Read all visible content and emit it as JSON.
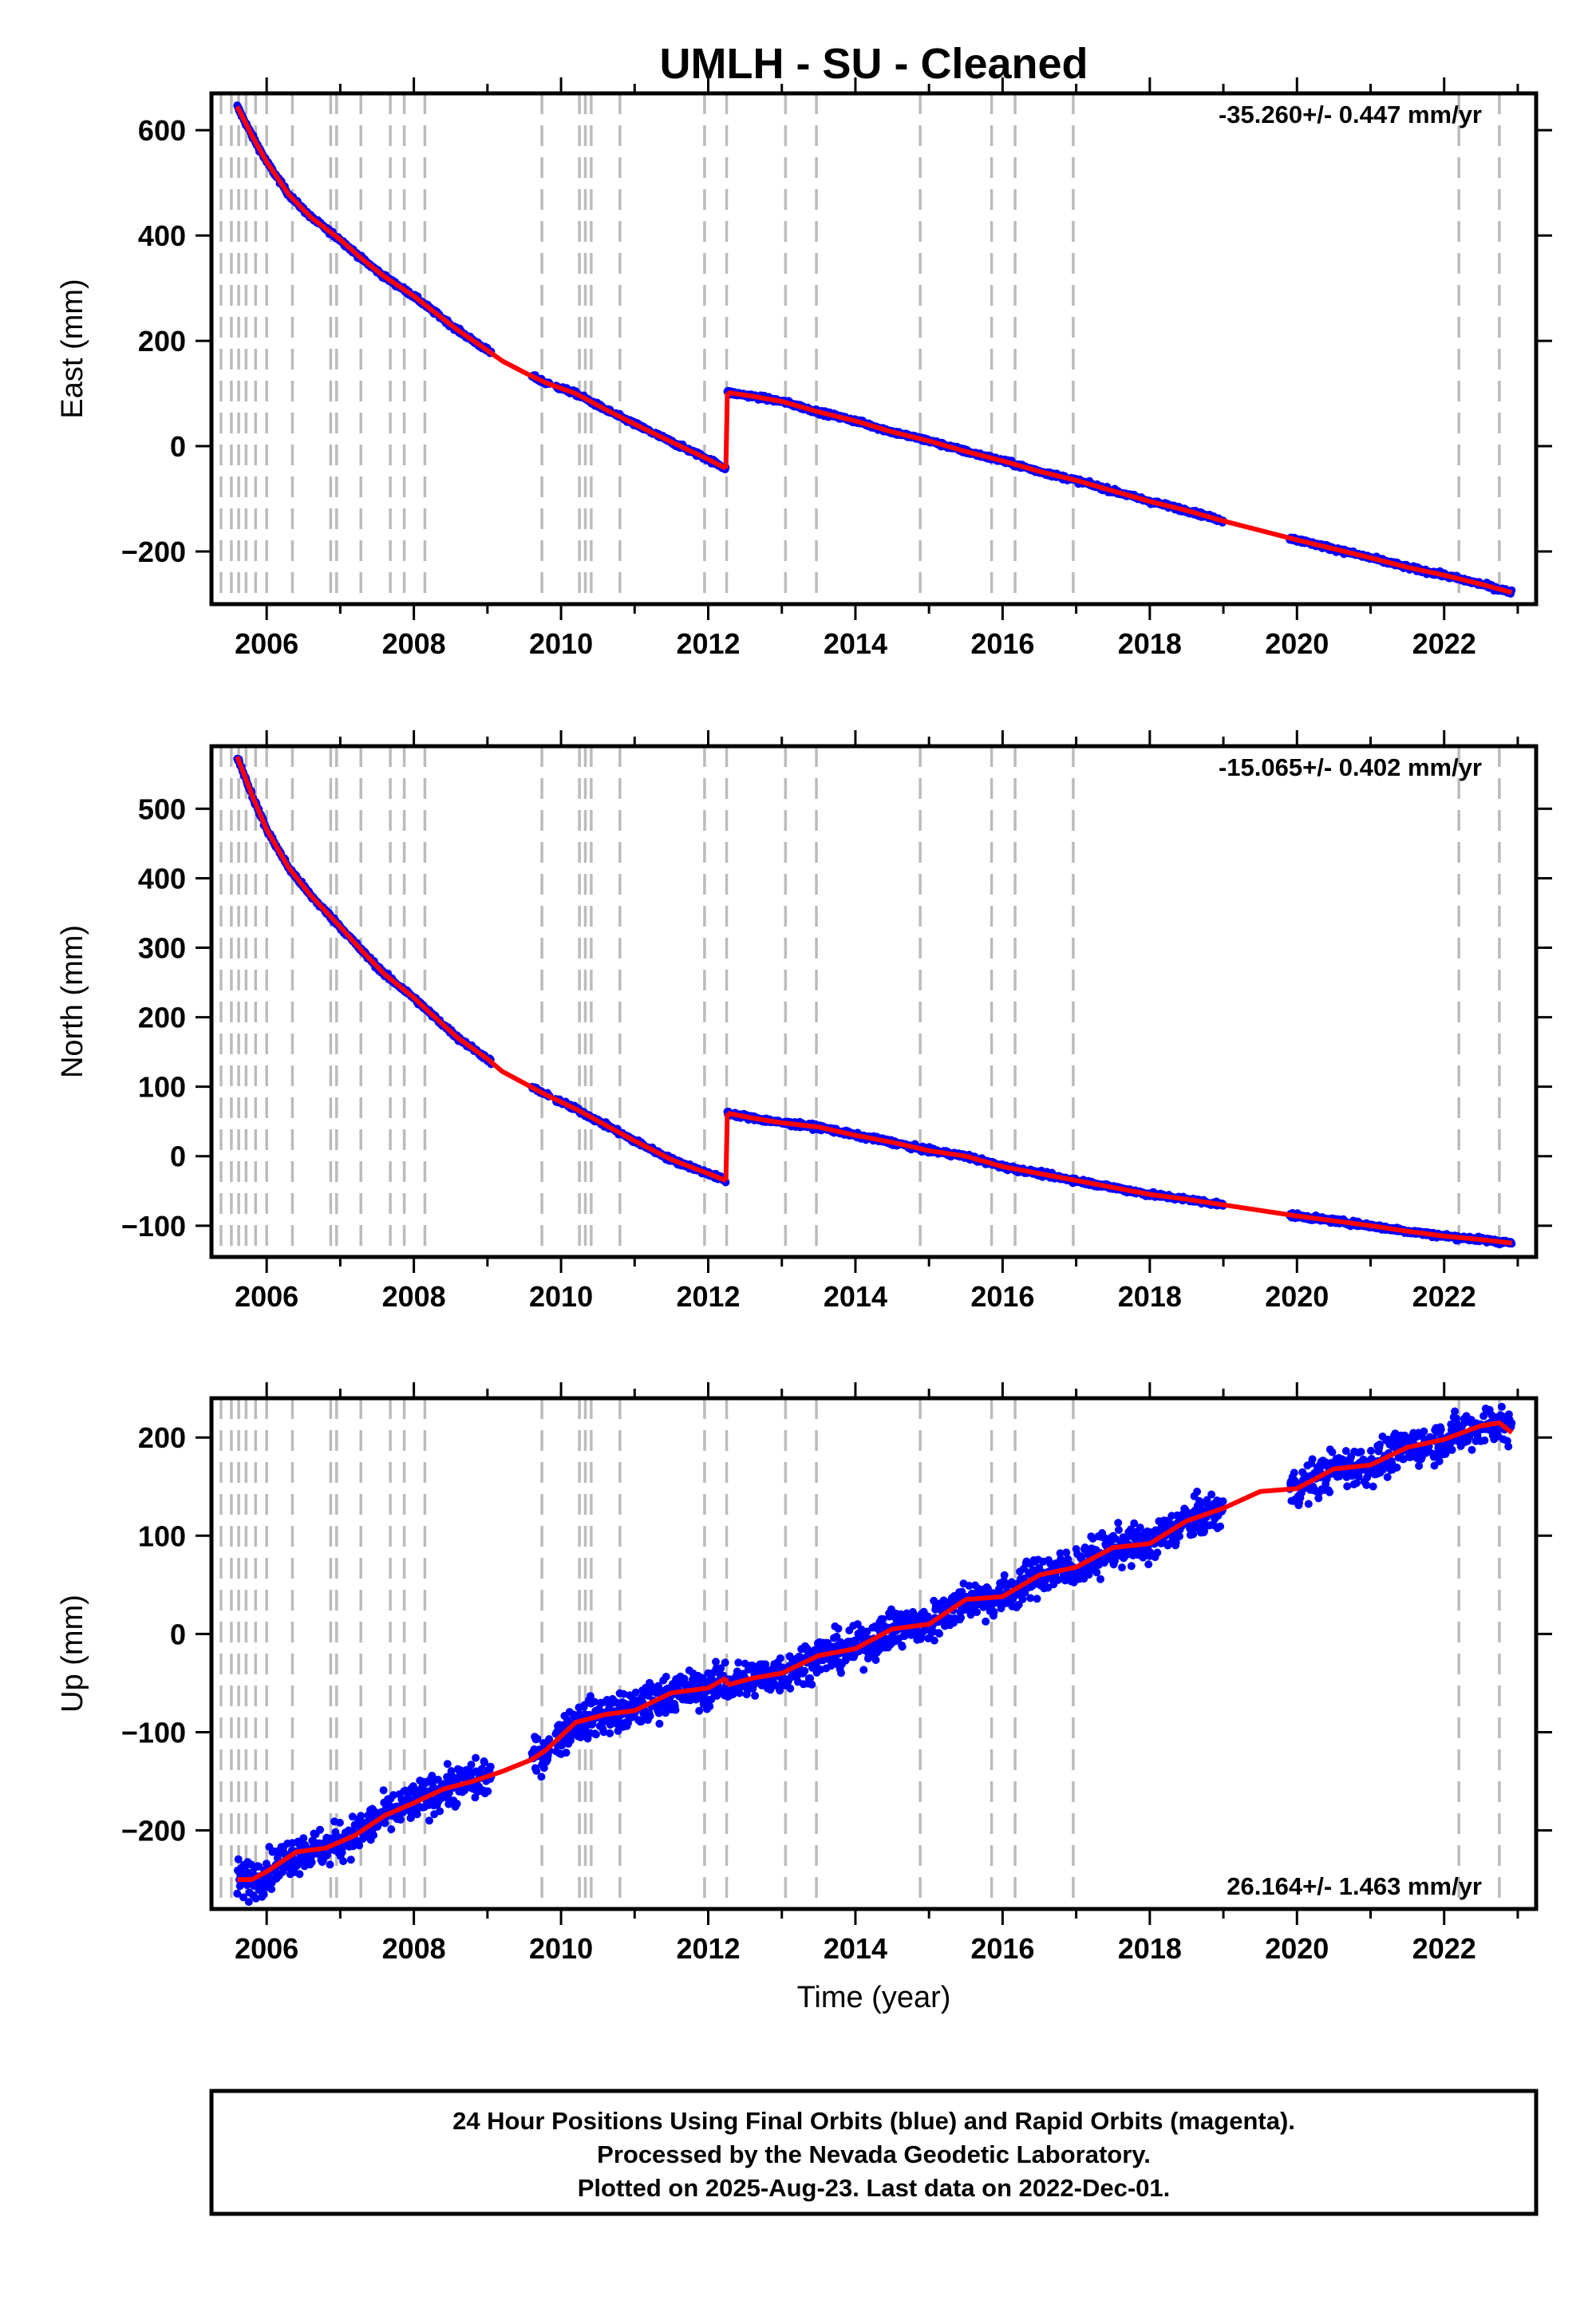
{
  "title": "UMLH  - SU - Cleaned",
  "xlabel": "Time (year)",
  "footer": [
    "24 Hour Positions Using Final Orbits (blue) and Rapid Orbits (magenta).",
    "Processed by the Nevada Geodetic Laboratory.",
    "Plotted on 2025-Aug-23. Last data on 2022-Dec-01."
  ],
  "colors": {
    "data": "#0000ff",
    "model": "#ff0000",
    "events": "#bbbbbb"
  },
  "event_lines": [
    2005.38,
    2005.52,
    2005.62,
    2005.72,
    2005.85,
    2006.0,
    2006.35,
    2006.87,
    2006.95,
    2007.28,
    2007.68,
    2007.87,
    2008.15,
    2009.74,
    2010.25,
    2010.33,
    2010.41,
    2010.8,
    2011.95,
    2012.25,
    2013.05,
    2013.47,
    2014.88,
    2015.85,
    2016.17,
    2016.96,
    2022.2,
    2022.75
  ],
  "chart_data": [
    {
      "type": "scatter",
      "ylabel": "East (mm)",
      "rate": "-35.260+/- 0.447 mm/yr",
      "xlim": [
        2005.25,
        2023.25
      ],
      "ylim": [
        -300,
        670
      ],
      "xticks": [
        2006,
        2008,
        2010,
        2012,
        2014,
        2016,
        2018,
        2020,
        2022
      ],
      "yticks": [
        -200,
        0,
        200,
        400,
        600
      ],
      "noise": 3,
      "series": [
        {
          "x": [
            2005.6,
            2005.8,
            2006.0,
            2006.3,
            2006.6,
            2007.0,
            2007.3,
            2007.6,
            2008.0,
            2008.2,
            2008.6,
            2009.0,
            2009.2,
            2009.5,
            2009.8,
            2010.2,
            2010.6,
            2011.0,
            2011.5,
            2012.0,
            2012.24
          ],
          "y": [
            645,
            590,
            540,
            478,
            435,
            392,
            355,
            322,
            285,
            263,
            220,
            182,
            162,
            140,
            120,
            100,
            70,
            42,
            8,
            -25,
            -42
          ]
        },
        {
          "x": [
            2012.26,
            2012.6,
            2013.0,
            2013.5,
            2014.0,
            2014.5,
            2015.0,
            2015.5,
            2016.0,
            2016.5,
            2017.0,
            2017.5,
            2018.0,
            2018.5,
            2019.0,
            2019.5,
            2020.0,
            2020.5,
            2021.0,
            2021.5,
            2022.0,
            2022.5,
            2022.92
          ],
          "y": [
            102,
            95,
            85,
            65,
            48,
            27,
            10,
            -10,
            -28,
            -48,
            -65,
            -85,
            -105,
            -122,
            -142,
            -160,
            -178,
            -195,
            -212,
            -230,
            -245,
            -262,
            -278
          ]
        }
      ],
      "gaps": [
        [
          2009.05,
          2009.6
        ],
        [
          2009.85,
          2009.92
        ],
        [
          2019.0,
          2019.9
        ]
      ]
    },
    {
      "type": "scatter",
      "ylabel": "North (mm)",
      "rate": "-15.065+/- 0.402 mm/yr",
      "xlim": [
        2005.25,
        2023.25
      ],
      "ylim": [
        -145,
        590
      ],
      "xticks": [
        2006,
        2008,
        2010,
        2012,
        2014,
        2016,
        2018,
        2020,
        2022
      ],
      "yticks": [
        -100,
        0,
        100,
        200,
        300,
        400,
        500
      ],
      "noise": 2.5,
      "series": [
        {
          "x": [
            2005.6,
            2005.8,
            2006.0,
            2006.3,
            2006.6,
            2007.0,
            2007.3,
            2007.6,
            2008.0,
            2008.2,
            2008.6,
            2009.0,
            2009.2,
            2009.5,
            2009.8,
            2010.2,
            2010.6,
            2011.0,
            2011.5,
            2012.0,
            2012.24
          ],
          "y": [
            575,
            520,
            470,
            415,
            375,
            330,
            295,
            262,
            228,
            208,
            170,
            140,
            122,
            105,
            88,
            68,
            45,
            22,
            -5,
            -25,
            -35
          ]
        },
        {
          "x": [
            2012.26,
            2012.6,
            2013.0,
            2013.5,
            2014.0,
            2014.5,
            2015.0,
            2015.5,
            2016.0,
            2016.5,
            2017.0,
            2017.5,
            2018.0,
            2018.5,
            2019.0,
            2019.5,
            2020.0,
            2020.5,
            2021.0,
            2021.5,
            2022.0,
            2022.5,
            2022.92
          ],
          "y": [
            62,
            55,
            48,
            42,
            30,
            20,
            8,
            0,
            -15,
            -25,
            -35,
            -45,
            -55,
            -62,
            -70,
            -78,
            -86,
            -93,
            -100,
            -108,
            -115,
            -120,
            -125
          ]
        }
      ],
      "gaps": [
        [
          2009.05,
          2009.6
        ],
        [
          2009.85,
          2009.92
        ],
        [
          2019.0,
          2019.9
        ]
      ]
    },
    {
      "type": "scatter",
      "ylabel": "Up (mm)",
      "rate": "26.164+/- 1.463 mm/yr",
      "xlim": [
        2005.25,
        2023.25
      ],
      "ylim": [
        -280,
        240
      ],
      "xticks": [
        2006,
        2008,
        2010,
        2012,
        2014,
        2016,
        2018,
        2020,
        2022
      ],
      "yticks": [
        -200,
        -100,
        0,
        100,
        200
      ],
      "noise": 14,
      "series": [
        {
          "x": [
            2005.6,
            2005.8,
            2006.0,
            2006.4,
            2006.8,
            2007.2,
            2007.6,
            2008.0,
            2008.4,
            2008.8,
            2009.2,
            2009.6,
            2009.8,
            2010.2,
            2010.6,
            2011.0,
            2011.5,
            2012.0,
            2012.24
          ],
          "y": [
            -250,
            -250,
            -242,
            -222,
            -218,
            -205,
            -185,
            -172,
            -158,
            -150,
            -140,
            -128,
            -118,
            -90,
            -82,
            -78,
            -60,
            -55,
            -45
          ]
        },
        {
          "x": [
            2012.26,
            2012.6,
            2013.0,
            2013.5,
            2014.0,
            2014.5,
            2015.0,
            2015.5,
            2016.0,
            2016.5,
            2017.0,
            2017.5,
            2018.0,
            2018.5,
            2019.0,
            2019.5,
            2020.0,
            2020.5,
            2021.0,
            2021.5,
            2022.0,
            2022.5,
            2022.75,
            2022.92
          ],
          "y": [
            -52,
            -45,
            -40,
            -22,
            -15,
            5,
            10,
            35,
            38,
            60,
            68,
            88,
            92,
            115,
            128,
            145,
            148,
            168,
            172,
            190,
            198,
            212,
            215,
            205
          ]
        }
      ],
      "gaps": [
        [
          2009.05,
          2009.6
        ],
        [
          2009.85,
          2009.92
        ],
        [
          2019.0,
          2019.9
        ]
      ]
    }
  ]
}
